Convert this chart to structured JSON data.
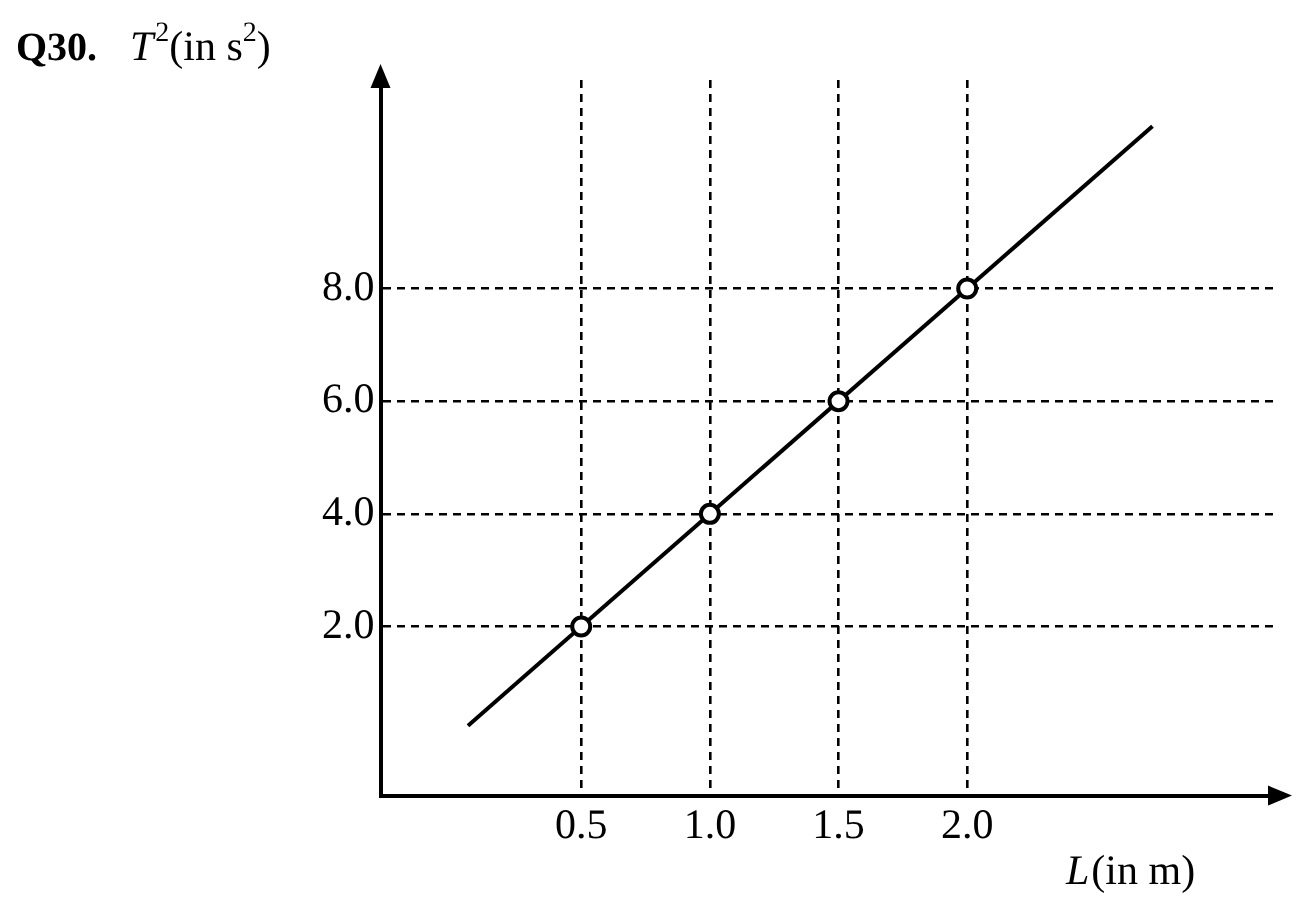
{
  "chart_data": {
    "type": "scatter",
    "title": "Q30.",
    "xlabel": "L(in m)",
    "ylabel": "T$^{2}$(in s$^{2}$)",
    "xlim": [
      -0.28,
      3.2
    ],
    "ylim": [
      -1.0,
      11.7
    ],
    "xticks": [
      {
        "value": 0.5,
        "label": "0.5"
      },
      {
        "value": 1.0,
        "label": "1.0"
      },
      {
        "value": 1.5,
        "label": "1.5"
      },
      {
        "value": 2.0,
        "label": "2.0"
      }
    ],
    "yticks": [
      {
        "value": 2.0,
        "label": "2.0"
      },
      {
        "value": 4.0,
        "label": "4.0"
      },
      {
        "value": 6.0,
        "label": "6.0"
      },
      {
        "value": 8.0,
        "label": "8.0"
      }
    ],
    "grid": true,
    "legend": false,
    "series": [
      {
        "type": "scatter",
        "color": "#000000",
        "marker": "circle",
        "x": [
          0.5,
          1.0,
          1.5,
          2.0
        ],
        "values": [
          2.0,
          4.0,
          6.0,
          8.0
        ]
      },
      {
        "type": "line",
        "color": "#000000",
        "marker": "none",
        "line_style": "solid",
        "x": [
          0.06,
          2.72
        ],
        "values": [
          0.24,
          10.88
        ]
      }
    ]
  }
}
